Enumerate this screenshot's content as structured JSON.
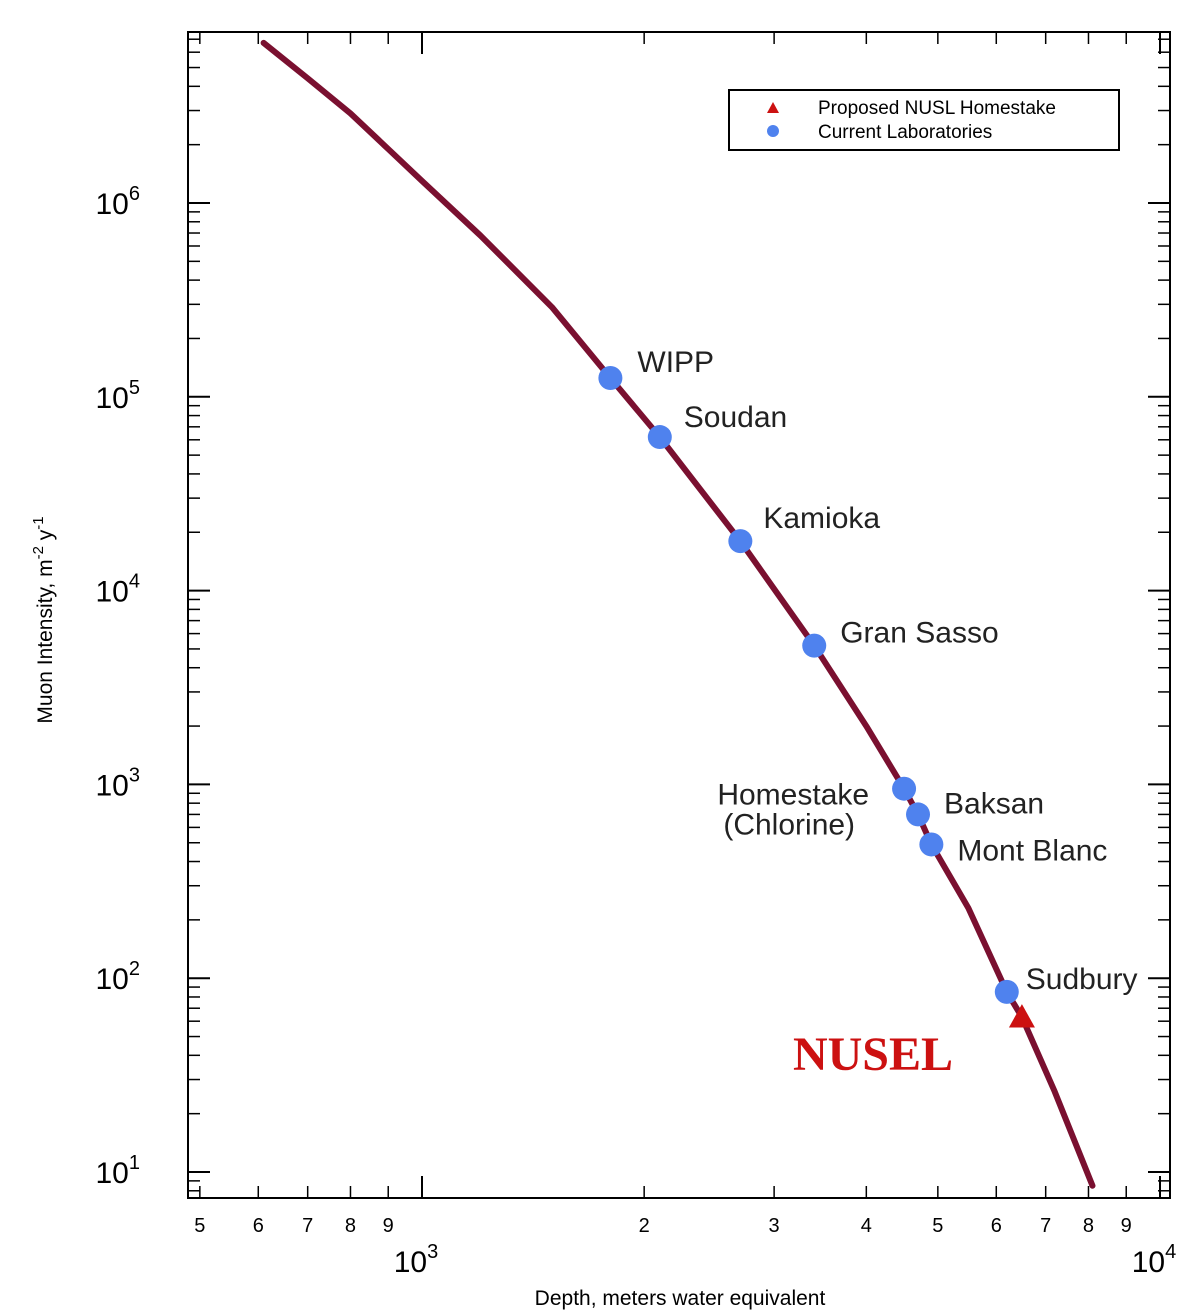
{
  "chart_data": {
    "type": "line",
    "xlabel": "Depth, meters water equivalent",
    "ylabel_main": "Muon Intensity, m",
    "ylabel_exp1": "-2",
    "ylabel_mid": " y",
    "ylabel_exp2": "-1",
    "x_scale": "log",
    "y_scale": "log",
    "xlim": [
      450,
      11000
    ],
    "ylim": [
      6.5,
      10000000
    ],
    "x_major_ticks": [
      {
        "value": 1000,
        "base": "10",
        "exp": "3"
      },
      {
        "value": 10000,
        "base": "10",
        "exp": "4"
      }
    ],
    "x_minor_ticks": [
      {
        "value": 500,
        "label": "5"
      },
      {
        "value": 600,
        "label": "6"
      },
      {
        "value": 700,
        "label": "7"
      },
      {
        "value": 800,
        "label": "8"
      },
      {
        "value": 900,
        "label": "9"
      },
      {
        "value": 2000,
        "label": "2"
      },
      {
        "value": 3000,
        "label": "3"
      },
      {
        "value": 4000,
        "label": "4"
      },
      {
        "value": 5000,
        "label": "5"
      },
      {
        "value": 6000,
        "label": "6"
      },
      {
        "value": 7000,
        "label": "7"
      },
      {
        "value": 8000,
        "label": "8"
      },
      {
        "value": 9000,
        "label": "9"
      }
    ],
    "y_major_ticks": [
      {
        "value": 10,
        "base": "10",
        "exp": "1"
      },
      {
        "value": 100,
        "base": "10",
        "exp": "2"
      },
      {
        "value": 1000,
        "base": "10",
        "exp": "3"
      },
      {
        "value": 10000,
        "base": "10",
        "exp": "4"
      },
      {
        "value": 100000,
        "base": "10",
        "exp": "5"
      },
      {
        "value": 1000000,
        "base": "10",
        "exp": "6"
      }
    ],
    "curve": {
      "color": "#7a1030",
      "x": [
        610,
        700,
        800,
        900,
        1000,
        1200,
        1500,
        1800,
        2100,
        2700,
        3400,
        4000,
        4500,
        4700,
        4900,
        5500,
        6200,
        6500,
        7200,
        8100
      ],
      "y": [
        6700000,
        4400000,
        2900000,
        1900000,
        1300000,
        680000,
        290000,
        125000,
        62000,
        18000,
        5200,
        2000,
        950,
        700,
        490,
        230,
        85,
        63,
        26,
        8.5
      ]
    },
    "series": [
      {
        "name": "Current Laboratories",
        "color": "#4f82ee",
        "marker": "circle",
        "points": [
          {
            "label": "WIPP",
            "x": 1800,
            "y": 125000
          },
          {
            "label": "Soudan",
            "x": 2100,
            "y": 62000
          },
          {
            "label": "Kamioka",
            "x": 2700,
            "y": 18000
          },
          {
            "label": "Gran Sasso",
            "x": 3400,
            "y": 5200
          },
          {
            "label": "Homestake",
            "label2": "(Chlorine)",
            "x": 4500,
            "y": 950
          },
          {
            "label": "Baksan",
            "x": 4700,
            "y": 700
          },
          {
            "label": "Mont Blanc",
            "x": 4900,
            "y": 490
          },
          {
            "label": "Sudbury",
            "x": 6200,
            "y": 85
          }
        ]
      },
      {
        "name": "Proposed NUSL Homestake",
        "color": "#cc1111",
        "marker": "triangle",
        "points": [
          {
            "label": "NUSEL",
            "x": 6500,
            "y": 63
          }
        ]
      }
    ],
    "legend_placement": "top-right",
    "grid": false
  }
}
